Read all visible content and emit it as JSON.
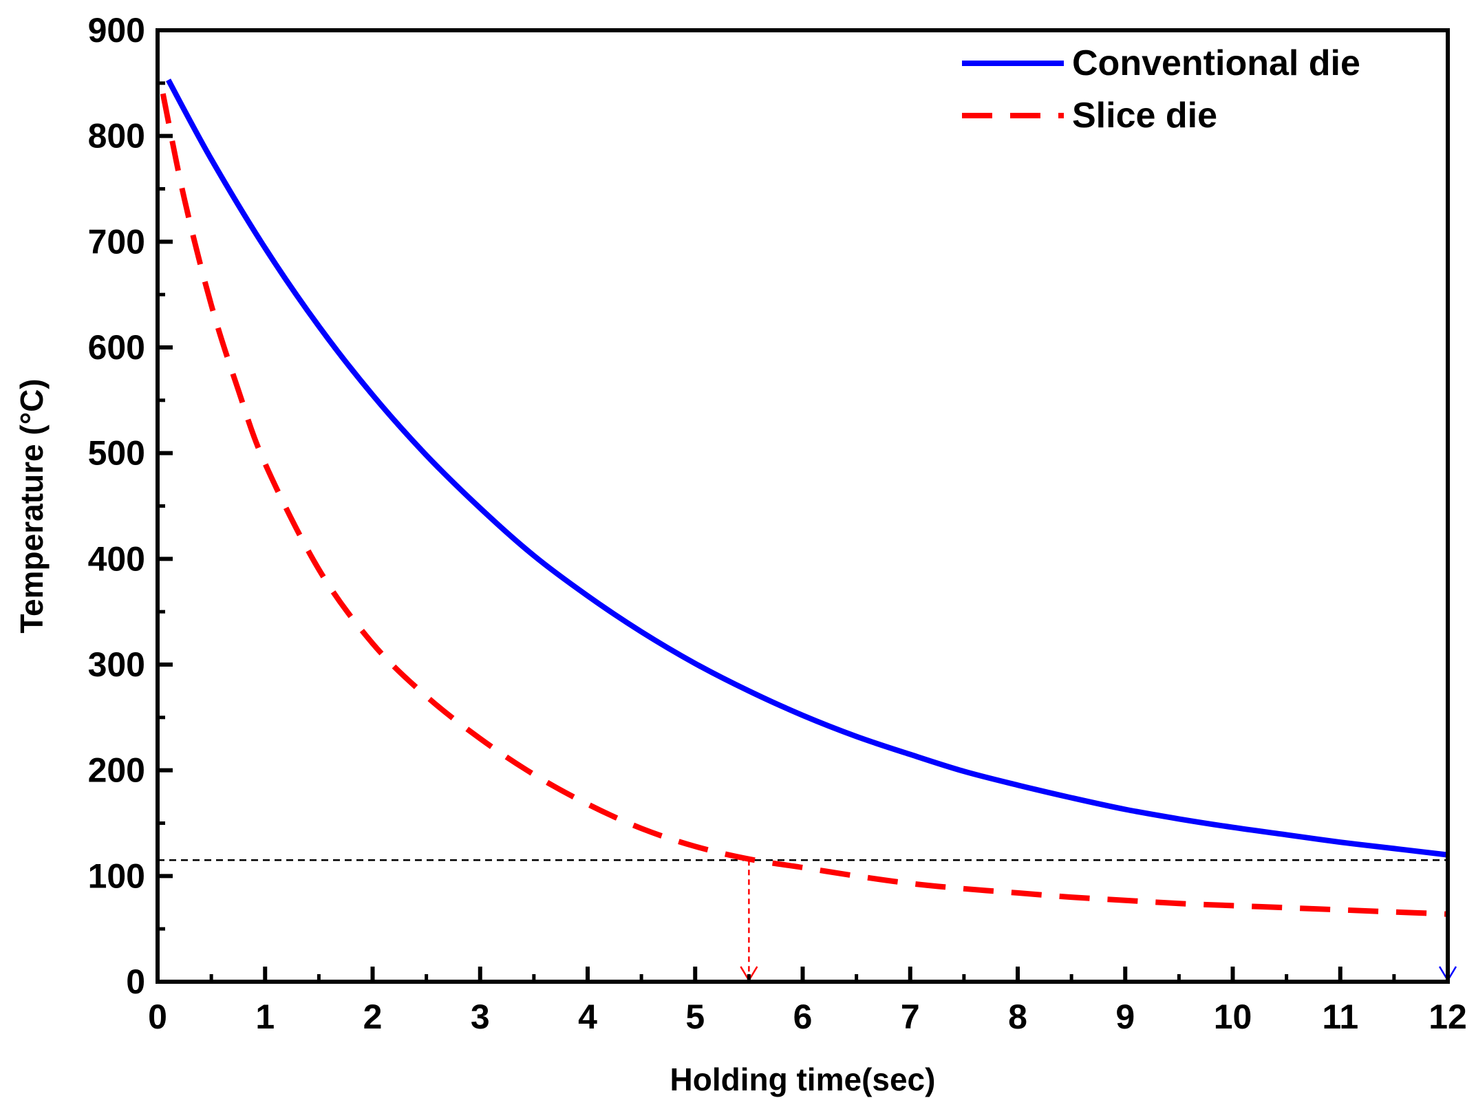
{
  "chart_data": {
    "type": "line",
    "title": "",
    "xlabel": "Holding time(sec)",
    "ylabel": "Temperature (°C)",
    "xlim": [
      0,
      12
    ],
    "ylim": [
      0,
      900
    ],
    "x_ticks": [
      0,
      1,
      2,
      3,
      4,
      5,
      6,
      7,
      8,
      9,
      10,
      11,
      12
    ],
    "y_ticks": [
      0,
      100,
      200,
      300,
      400,
      500,
      600,
      700,
      800,
      900
    ],
    "x_tick_labels": [
      "0",
      "1",
      "2",
      "3",
      "4",
      "5",
      "6",
      "7",
      "8",
      "9",
      "10",
      "11",
      "12"
    ],
    "y_tick_labels": [
      "0",
      "100",
      "200",
      "300",
      "400",
      "500",
      "600",
      "700",
      "800",
      "900"
    ],
    "grid": false,
    "legend_position": "top-right",
    "series": [
      {
        "name": "Conventional die",
        "color": "#0000ff",
        "style": "solid",
        "x": [
          0.1,
          0.5,
          1,
          1.5,
          2,
          2.5,
          3,
          3.5,
          4,
          4.5,
          5,
          5.5,
          6,
          6.5,
          7,
          7.5,
          8,
          8.5,
          9,
          9.5,
          10,
          10.5,
          11,
          11.5,
          12
        ],
        "values": [
          853,
          778,
          694,
          620,
          555,
          498,
          448,
          403,
          365,
          331,
          301,
          275,
          252,
          232,
          215,
          199,
          186,
          174,
          163,
          154,
          146,
          139,
          132,
          126,
          120
        ]
      },
      {
        "name": "Slice die",
        "color": "#ff0000",
        "style": "dashed",
        "x": [
          0.05,
          0.25,
          0.5,
          0.75,
          1,
          1.5,
          2,
          2.5,
          3,
          3.5,
          4,
          4.5,
          5,
          5.5,
          6,
          6.5,
          7,
          7.5,
          8,
          8.5,
          9,
          9.5,
          10,
          10.5,
          11,
          11.5,
          12
        ],
        "values": [
          840,
          740,
          640,
          560,
          490,
          390,
          320,
          270,
          230,
          196,
          168,
          145,
          128,
          116,
          108,
          100,
          93,
          88,
          84,
          80,
          77,
          74,
          72,
          70,
          68,
          66,
          64
        ]
      }
    ],
    "annotations": {
      "threshold_value": 115,
      "threshold_color": "#000000",
      "slice_arrow_x": 5.5,
      "slice_arrow_color": "#ff0000",
      "conventional_arrow_x": 12,
      "conventional_arrow_color": "#0000ff"
    }
  }
}
